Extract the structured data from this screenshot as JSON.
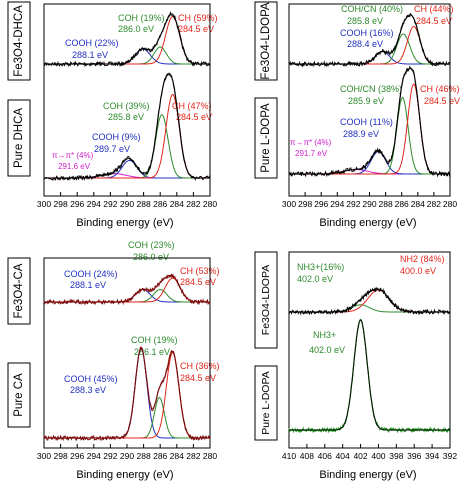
{
  "figure": {
    "panel_a": {
      "traces": [
        {
          "sample_label": "Fe3O4-DHCA",
          "tags": [
            {
              "text": "COH (19%)",
              "color": "#2e8b2e"
            },
            {
              "text": "286.0 eV",
              "color": "#2e8b2e"
            },
            {
              "text": "CH (59%)",
              "color": "#e0261b"
            },
            {
              "text": "284.5 eV",
              "color": "#e0261b"
            },
            {
              "text": "COOH (22%)",
              "color": "#2030c0"
            },
            {
              "text": "288.1 eV",
              "color": "#2030c0"
            }
          ]
        },
        {
          "sample_label": "Pure DHCA",
          "tags": [
            {
              "text": "COH (39%)",
              "color": "#2e8b2e"
            },
            {
              "text": "285.8 eV",
              "color": "#2e8b2e"
            },
            {
              "text": "CH (47%)",
              "color": "#e0261b"
            },
            {
              "text": "284.5 eV",
              "color": "#e0261b"
            },
            {
              "text": "COOH (9%)",
              "color": "#2030c0"
            },
            {
              "text": "289.7 eV",
              "color": "#2030c0"
            },
            {
              "text": "π→π* (4%)",
              "color": "#d020d0"
            },
            {
              "text": "291.6 eV",
              "color": "#d020d0"
            }
          ]
        }
      ],
      "ticks": [
        "300",
        "298",
        "296",
        "294",
        "292",
        "290",
        "288",
        "286",
        "284",
        "282",
        "280"
      ],
      "xlabel": "Binding energy (eV)"
    },
    "panel_b": {
      "traces": [
        {
          "sample_label": "Fe3O4-LDOPA",
          "tags": [
            {
              "text": "COH/CN (40%)",
              "color": "#2e8b2e"
            },
            {
              "text": "285.8 eV",
              "color": "#2e8b2e"
            },
            {
              "text": "CH (44%)",
              "color": "#e0261b"
            },
            {
              "text": "284.5 eV",
              "color": "#e0261b"
            },
            {
              "text": "COOH (16%)",
              "color": "#2030c0"
            },
            {
              "text": "288.4 eV",
              "color": "#2030c0"
            }
          ]
        },
        {
          "sample_label": "Pure L-DOPA",
          "tags": [
            {
              "text": "COH/CN (38%)",
              "color": "#2e8b2e"
            },
            {
              "text": "285.9 eV",
              "color": "#2e8b2e"
            },
            {
              "text": "CH (46%)",
              "color": "#e0261b"
            },
            {
              "text": "284.5 eV",
              "color": "#e0261b"
            },
            {
              "text": "COOH (11%)",
              "color": "#2030c0"
            },
            {
              "text": "288.9 eV",
              "color": "#2030c0"
            },
            {
              "text": "π→π* (4%)",
              "color": "#d020d0"
            },
            {
              "text": "291.7 eV",
              "color": "#d020d0"
            }
          ]
        }
      ],
      "ticks": [
        "300",
        "298",
        "296",
        "294",
        "292",
        "290",
        "288",
        "286",
        "284",
        "282",
        "280"
      ],
      "xlabel": "Binding energy (eV)"
    },
    "panel_c": {
      "traces": [
        {
          "sample_label": "Fe3O4-CA",
          "tags": [
            {
              "text": "COH (23%)",
              "color": "#2e8b2e"
            },
            {
              "text": "286.0 eV",
              "color": "#2e8b2e"
            },
            {
              "text": "COOH (24%)",
              "color": "#2030c0"
            },
            {
              "text": "288.1 eV",
              "color": "#2030c0"
            },
            {
              "text": "CH (53%)",
              "color": "#e0261b"
            },
            {
              "text": "284.5 eV",
              "color": "#e0261b"
            }
          ]
        },
        {
          "sample_label": "Pure CA",
          "tags": [
            {
              "text": "COH (19%)",
              "color": "#2e8b2e"
            },
            {
              "text": "286.1 eV",
              "color": "#2e8b2e"
            },
            {
              "text": "COOH (45%)",
              "color": "#2030c0"
            },
            {
              "text": "288.3 eV",
              "color": "#2030c0"
            },
            {
              "text": "CH (36%)",
              "color": "#e0261b"
            },
            {
              "text": "284.5 eV",
              "color": "#e0261b"
            }
          ]
        }
      ],
      "ticks": [
        "300",
        "298",
        "296",
        "294",
        "292",
        "290",
        "288",
        "286",
        "284",
        "282",
        "280"
      ],
      "xlabel": "Binding energy (eV)"
    },
    "panel_d": {
      "traces": [
        {
          "sample_label": "Fe3O4-LDOPA",
          "tags": [
            {
              "text": "NH3+(16%)",
              "color": "#2e8b2e"
            },
            {
              "text": "402.0 eV",
              "color": "#2e8b2e"
            },
            {
              "text": "NH2 (84%)",
              "color": "#e0261b"
            },
            {
              "text": "400.0 eV",
              "color": "#e0261b"
            }
          ]
        },
        {
          "sample_label": "Pure L-DOPA",
          "tags": [
            {
              "text": "NH3+",
              "color": "#2e8b2e"
            },
            {
              "text": "402.0 eV",
              "color": "#2e8b2e"
            }
          ]
        }
      ],
      "ticks": [
        "410",
        "408",
        "406",
        "404",
        "402",
        "400",
        "398",
        "396",
        "394",
        "392"
      ],
      "xlabel": "Binding energy (eV)"
    }
  },
  "chart_data": [
    {
      "type": "line",
      "x_reversed": true,
      "xlabel": "Binding energy (eV)",
      "xlim": [
        300,
        280
      ],
      "series": [
        {
          "name": "Fe3O4-DHCA",
          "components": [
            {
              "name": "COOH (22%)",
              "center": 288.1,
              "height": 0.3,
              "width": 0.9
            },
            {
              "name": "COH (19%)",
              "center": 286.0,
              "height": 0.34,
              "width": 0.75
            },
            {
              "name": "CH (59%)",
              "center": 284.5,
              "height": 0.95,
              "width": 0.85
            }
          ]
        },
        {
          "name": "Pure DHCA",
          "components": [
            {
              "name": "π→π* (4%)",
              "center": 291.6,
              "height": 0.05,
              "width": 1.5
            },
            {
              "name": "COOH (9%)",
              "center": 289.7,
              "height": 0.2,
              "width": 0.9
            },
            {
              "name": "COH (39%)",
              "center": 285.8,
              "height": 0.72,
              "width": 0.75
            },
            {
              "name": "CH (47%)",
              "center": 284.5,
              "height": 0.95,
              "width": 0.8
            }
          ]
        }
      ]
    },
    {
      "type": "line",
      "x_reversed": true,
      "xlabel": "Binding energy (eV)",
      "xlim": [
        300,
        280
      ],
      "series": [
        {
          "name": "Fe3O4-LDOPA",
          "components": [
            {
              "name": "COOH (16%)",
              "center": 288.4,
              "height": 0.25,
              "width": 0.9
            },
            {
              "name": "COH/CN (40%)",
              "center": 285.8,
              "height": 0.6,
              "width": 0.8
            },
            {
              "name": "CH (44%)",
              "center": 284.5,
              "height": 0.75,
              "width": 0.8
            }
          ]
        },
        {
          "name": "Pure L-DOPA",
          "components": [
            {
              "name": "π→π* (4%)",
              "center": 291.7,
              "height": 0.05,
              "width": 1.5
            },
            {
              "name": "COOH (11%)",
              "center": 288.9,
              "height": 0.25,
              "width": 0.9
            },
            {
              "name": "COH/CN (38%)",
              "center": 285.9,
              "height": 0.85,
              "width": 0.7
            },
            {
              "name": "CH (46%)",
              "center": 284.5,
              "height": 1.0,
              "width": 0.75
            }
          ]
        }
      ]
    },
    {
      "type": "line",
      "x_reversed": true,
      "xlabel": "Binding energy (eV)",
      "xlim": [
        300,
        280
      ],
      "series": [
        {
          "name": "Fe3O4-CA",
          "components": [
            {
              "name": "COOH (24%)",
              "center": 288.1,
              "height": 0.25,
              "width": 0.9
            },
            {
              "name": "COH (23%)",
              "center": 286.0,
              "height": 0.25,
              "width": 0.8
            },
            {
              "name": "CH (53%)",
              "center": 284.5,
              "height": 0.48,
              "width": 0.9
            }
          ]
        },
        {
          "name": "Pure CA",
          "components": [
            {
              "name": "COOH (45%)",
              "center": 288.3,
              "height": 1.0,
              "width": 0.7
            },
            {
              "name": "COH (19%)",
              "center": 286.1,
              "height": 0.45,
              "width": 0.6
            },
            {
              "name": "CH (36%)",
              "center": 284.5,
              "height": 0.95,
              "width": 0.75
            }
          ]
        }
      ]
    },
    {
      "type": "line",
      "x_reversed": true,
      "xlabel": "Binding energy (eV)",
      "xlim": [
        410,
        392
      ],
      "series": [
        {
          "name": "Fe3O4-LDOPA",
          "components": [
            {
              "name": "NH3+(16%)",
              "center": 402.0,
              "height": 0.18,
              "width": 1.0
            },
            {
              "name": "NH2 (84%)",
              "center": 400.0,
              "height": 0.55,
              "width": 1.2
            }
          ]
        },
        {
          "name": "Pure L-DOPA",
          "components": [
            {
              "name": "NH3+",
              "center": 402.0,
              "height": 1.0,
              "width": 0.75
            }
          ]
        }
      ]
    }
  ]
}
